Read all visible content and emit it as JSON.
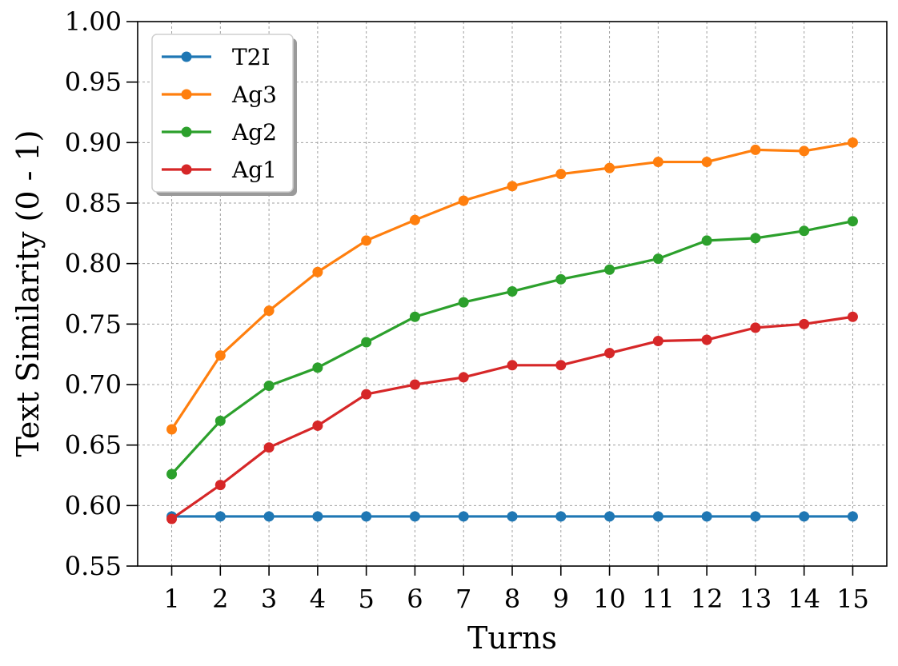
{
  "chart_data": {
    "type": "line",
    "title": "",
    "xlabel": "Turns",
    "ylabel": "Text Similarity (0 - 1)",
    "x": [
      1,
      2,
      3,
      4,
      5,
      6,
      7,
      8,
      9,
      10,
      11,
      12,
      13,
      14,
      15
    ],
    "xtick_labels": [
      "1",
      "2",
      "3",
      "4",
      "5",
      "6",
      "7",
      "8",
      "9",
      "10",
      "11",
      "12",
      "13",
      "14",
      "15"
    ],
    "ylim": [
      0.55,
      1.0
    ],
    "yticks": [
      0.55,
      0.6,
      0.65,
      0.7,
      0.75,
      0.8,
      0.85,
      0.9,
      0.95,
      1.0
    ],
    "ytick_labels": [
      "0.55",
      "0.60",
      "0.65",
      "0.70",
      "0.75",
      "0.80",
      "0.85",
      "0.90",
      "0.95",
      "1.00"
    ],
    "grid": true,
    "legend_position": "top-left",
    "series": [
      {
        "name": "T2I",
        "color": "#1f77b4",
        "values": [
          0.591,
          0.591,
          0.591,
          0.591,
          0.591,
          0.591,
          0.591,
          0.591,
          0.591,
          0.591,
          0.591,
          0.591,
          0.591,
          0.591,
          0.591
        ]
      },
      {
        "name": "Ag3",
        "color": "#ff7f0e",
        "values": [
          0.663,
          0.724,
          0.761,
          0.793,
          0.819,
          0.836,
          0.852,
          0.864,
          0.874,
          0.879,
          0.884,
          0.884,
          0.894,
          0.893,
          0.9
        ]
      },
      {
        "name": "Ag2",
        "color": "#2ca02c",
        "values": [
          0.626,
          0.67,
          0.699,
          0.714,
          0.735,
          0.756,
          0.768,
          0.777,
          0.787,
          0.795,
          0.804,
          0.819,
          0.821,
          0.827,
          0.835
        ]
      },
      {
        "name": "Ag1",
        "color": "#d62728",
        "values": [
          0.589,
          0.617,
          0.648,
          0.666,
          0.692,
          0.7,
          0.706,
          0.716,
          0.716,
          0.726,
          0.736,
          0.737,
          0.747,
          0.75,
          0.756
        ]
      }
    ]
  }
}
